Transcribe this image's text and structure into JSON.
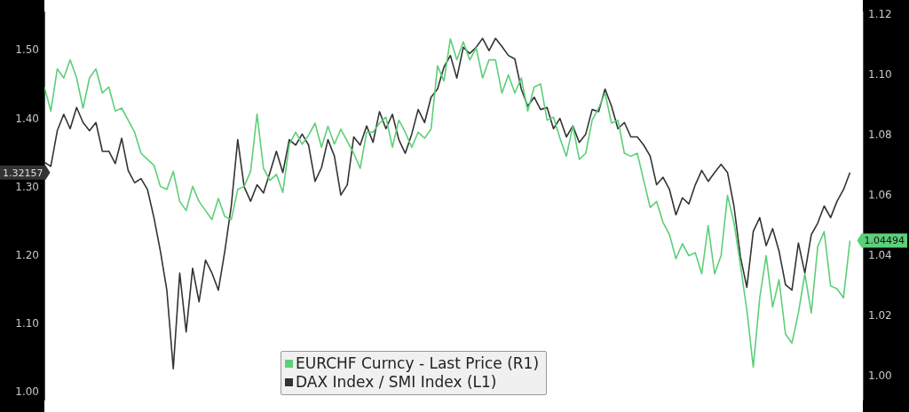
{
  "chart_data": {
    "type": "line",
    "categories": [
      null,
      null,
      null,
      null,
      null,
      null,
      null,
      null,
      null,
      null,
      null,
      null,
      null,
      null,
      null,
      null,
      null,
      null,
      null,
      null,
      null,
      null,
      null,
      null,
      null,
      null,
      null,
      null,
      null,
      null,
      null,
      null,
      null,
      null,
      null,
      null,
      null,
      null,
      null,
      null,
      null,
      null,
      null,
      null,
      null,
      null,
      null,
      null,
      null,
      null,
      null,
      null,
      null,
      null,
      null,
      null,
      null,
      null,
      null,
      null,
      null,
      null,
      null,
      null,
      null,
      null,
      null,
      null,
      null,
      null,
      null,
      null,
      null,
      null,
      null,
      null,
      null,
      null,
      null,
      null,
      null,
      null,
      null,
      null,
      null,
      null,
      null,
      null,
      null,
      null,
      null,
      null,
      null,
      null,
      null,
      null,
      null,
      null,
      null,
      null,
      null,
      null,
      null,
      null,
      null,
      null,
      null,
      null,
      null,
      null,
      null,
      null,
      null,
      null,
      null,
      null,
      null,
      null,
      null,
      null,
      null,
      null,
      null,
      null,
      null,
      null
    ],
    "legend": "bottom",
    "line_style": "solid",
    "marker": "none",
    "tick_labels": "y",
    "ylim": [
      0.989,
      1.557
    ],
    "yticks": [
      {
        "value": 1.0,
        "label": "1.00"
      },
      {
        "value": 1.1,
        "label": "1.10"
      },
      {
        "value": 1.2,
        "label": "1.20"
      },
      {
        "value": 1.3,
        "label": "1.30"
      },
      {
        "value": 1.4,
        "label": "1.40"
      },
      {
        "value": 1.5,
        "label": "1.50"
      }
    ],
    "y2lim": [
      0.992,
      1.121
    ],
    "y2ticks": [
      {
        "value": 1.0,
        "label": "1.00"
      },
      1.02,
      1.04,
      1.06,
      1.08,
      {
        "value": 1.1,
        "label": "1.10"
      },
      1.12
    ],
    "annotations": [
      "1.04494",
      "1.32157"
    ],
    "series": [
      {
        "name": "EURCHF Curncy - Last Price (R1)",
        "color": "#5ccf78",
        "axis": "y2",
        "values": [
          1.096,
          1.088,
          1.102,
          1.099,
          1.105,
          1.099,
          1.089,
          1.099,
          1.102,
          1.094,
          1.096,
          1.088,
          1.089,
          1.085,
          1.081,
          1.074,
          1.072,
          1.07,
          1.063,
          1.062,
          1.068,
          1.058,
          1.055,
          1.063,
          1.058,
          1.055,
          1.052,
          1.059,
          1.053,
          1.052,
          1.062,
          1.063,
          1.068,
          1.087,
          1.069,
          1.065,
          1.067,
          1.061,
          1.077,
          1.081,
          1.077,
          1.08,
          1.084,
          1.076,
          1.083,
          1.077,
          1.082,
          1.078,
          1.074,
          1.069,
          1.081,
          1.081,
          1.084,
          1.086,
          1.076,
          1.085,
          1.081,
          1.076,
          1.081,
          1.079,
          1.082,
          1.103,
          1.098,
          1.112,
          1.105,
          1.111,
          1.105,
          1.109,
          1.099,
          1.105,
          1.105,
          1.094,
          1.1,
          1.094,
          1.099,
          1.088,
          1.096,
          1.097,
          1.085,
          1.086,
          1.079,
          1.073,
          1.083,
          1.072,
          1.074,
          1.085,
          1.089,
          1.094,
          1.084,
          1.085,
          1.074,
          1.073,
          1.074,
          1.065,
          1.056,
          1.058,
          1.051,
          1.047,
          1.039,
          1.044,
          1.04,
          1.041,
          1.034,
          1.05,
          1.034,
          1.04,
          1.06,
          1.051,
          1.037,
          1.022,
          1.003,
          1.026,
          1.04,
          1.023,
          1.032,
          1.014,
          1.011,
          1.021,
          1.034,
          1.021,
          1.043,
          1.048,
          1.03,
          1.029,
          1.026,
          1.045
        ]
      },
      {
        "name": "DAX Index / SMI Index (L1)",
        "color": "#333333",
        "axis": "y",
        "values": [
          1.337,
          1.331,
          1.383,
          1.407,
          1.386,
          1.417,
          1.395,
          1.383,
          1.395,
          1.353,
          1.353,
          1.335,
          1.372,
          1.325,
          1.307,
          1.313,
          1.297,
          1.256,
          1.207,
          1.15,
          1.035,
          1.175,
          1.089,
          1.182,
          1.133,
          1.194,
          1.175,
          1.15,
          1.207,
          1.273,
          1.37,
          1.301,
          1.28,
          1.304,
          1.292,
          1.322,
          1.353,
          1.322,
          1.37,
          1.362,
          1.378,
          1.362,
          1.309,
          1.329,
          1.37,
          1.346,
          1.289,
          1.304,
          1.374,
          1.362,
          1.39,
          1.366,
          1.411,
          1.386,
          1.407,
          1.37,
          1.35,
          1.378,
          1.414,
          1.395,
          1.432,
          1.444,
          1.476,
          1.493,
          1.46,
          1.505,
          1.496,
          1.505,
          1.518,
          1.5,
          1.518,
          1.506,
          1.493,
          1.488,
          1.444,
          1.419,
          1.432,
          1.414,
          1.417,
          1.386,
          1.401,
          1.374,
          1.39,
          1.366,
          1.378,
          1.414,
          1.411,
          1.444,
          1.419,
          1.386,
          1.395,
          1.374,
          1.374,
          1.362,
          1.346,
          1.304,
          1.315,
          1.297,
          1.26,
          1.285,
          1.276,
          1.304,
          1.325,
          1.309,
          1.322,
          1.334,
          1.322,
          1.273,
          1.199,
          1.154,
          1.236,
          1.256,
          1.215,
          1.24,
          1.207,
          1.158,
          1.15,
          1.219,
          1.175,
          1.231,
          1.248,
          1.273,
          1.256,
          1.28,
          1.297,
          1.322
        ]
      }
    ]
  }
}
